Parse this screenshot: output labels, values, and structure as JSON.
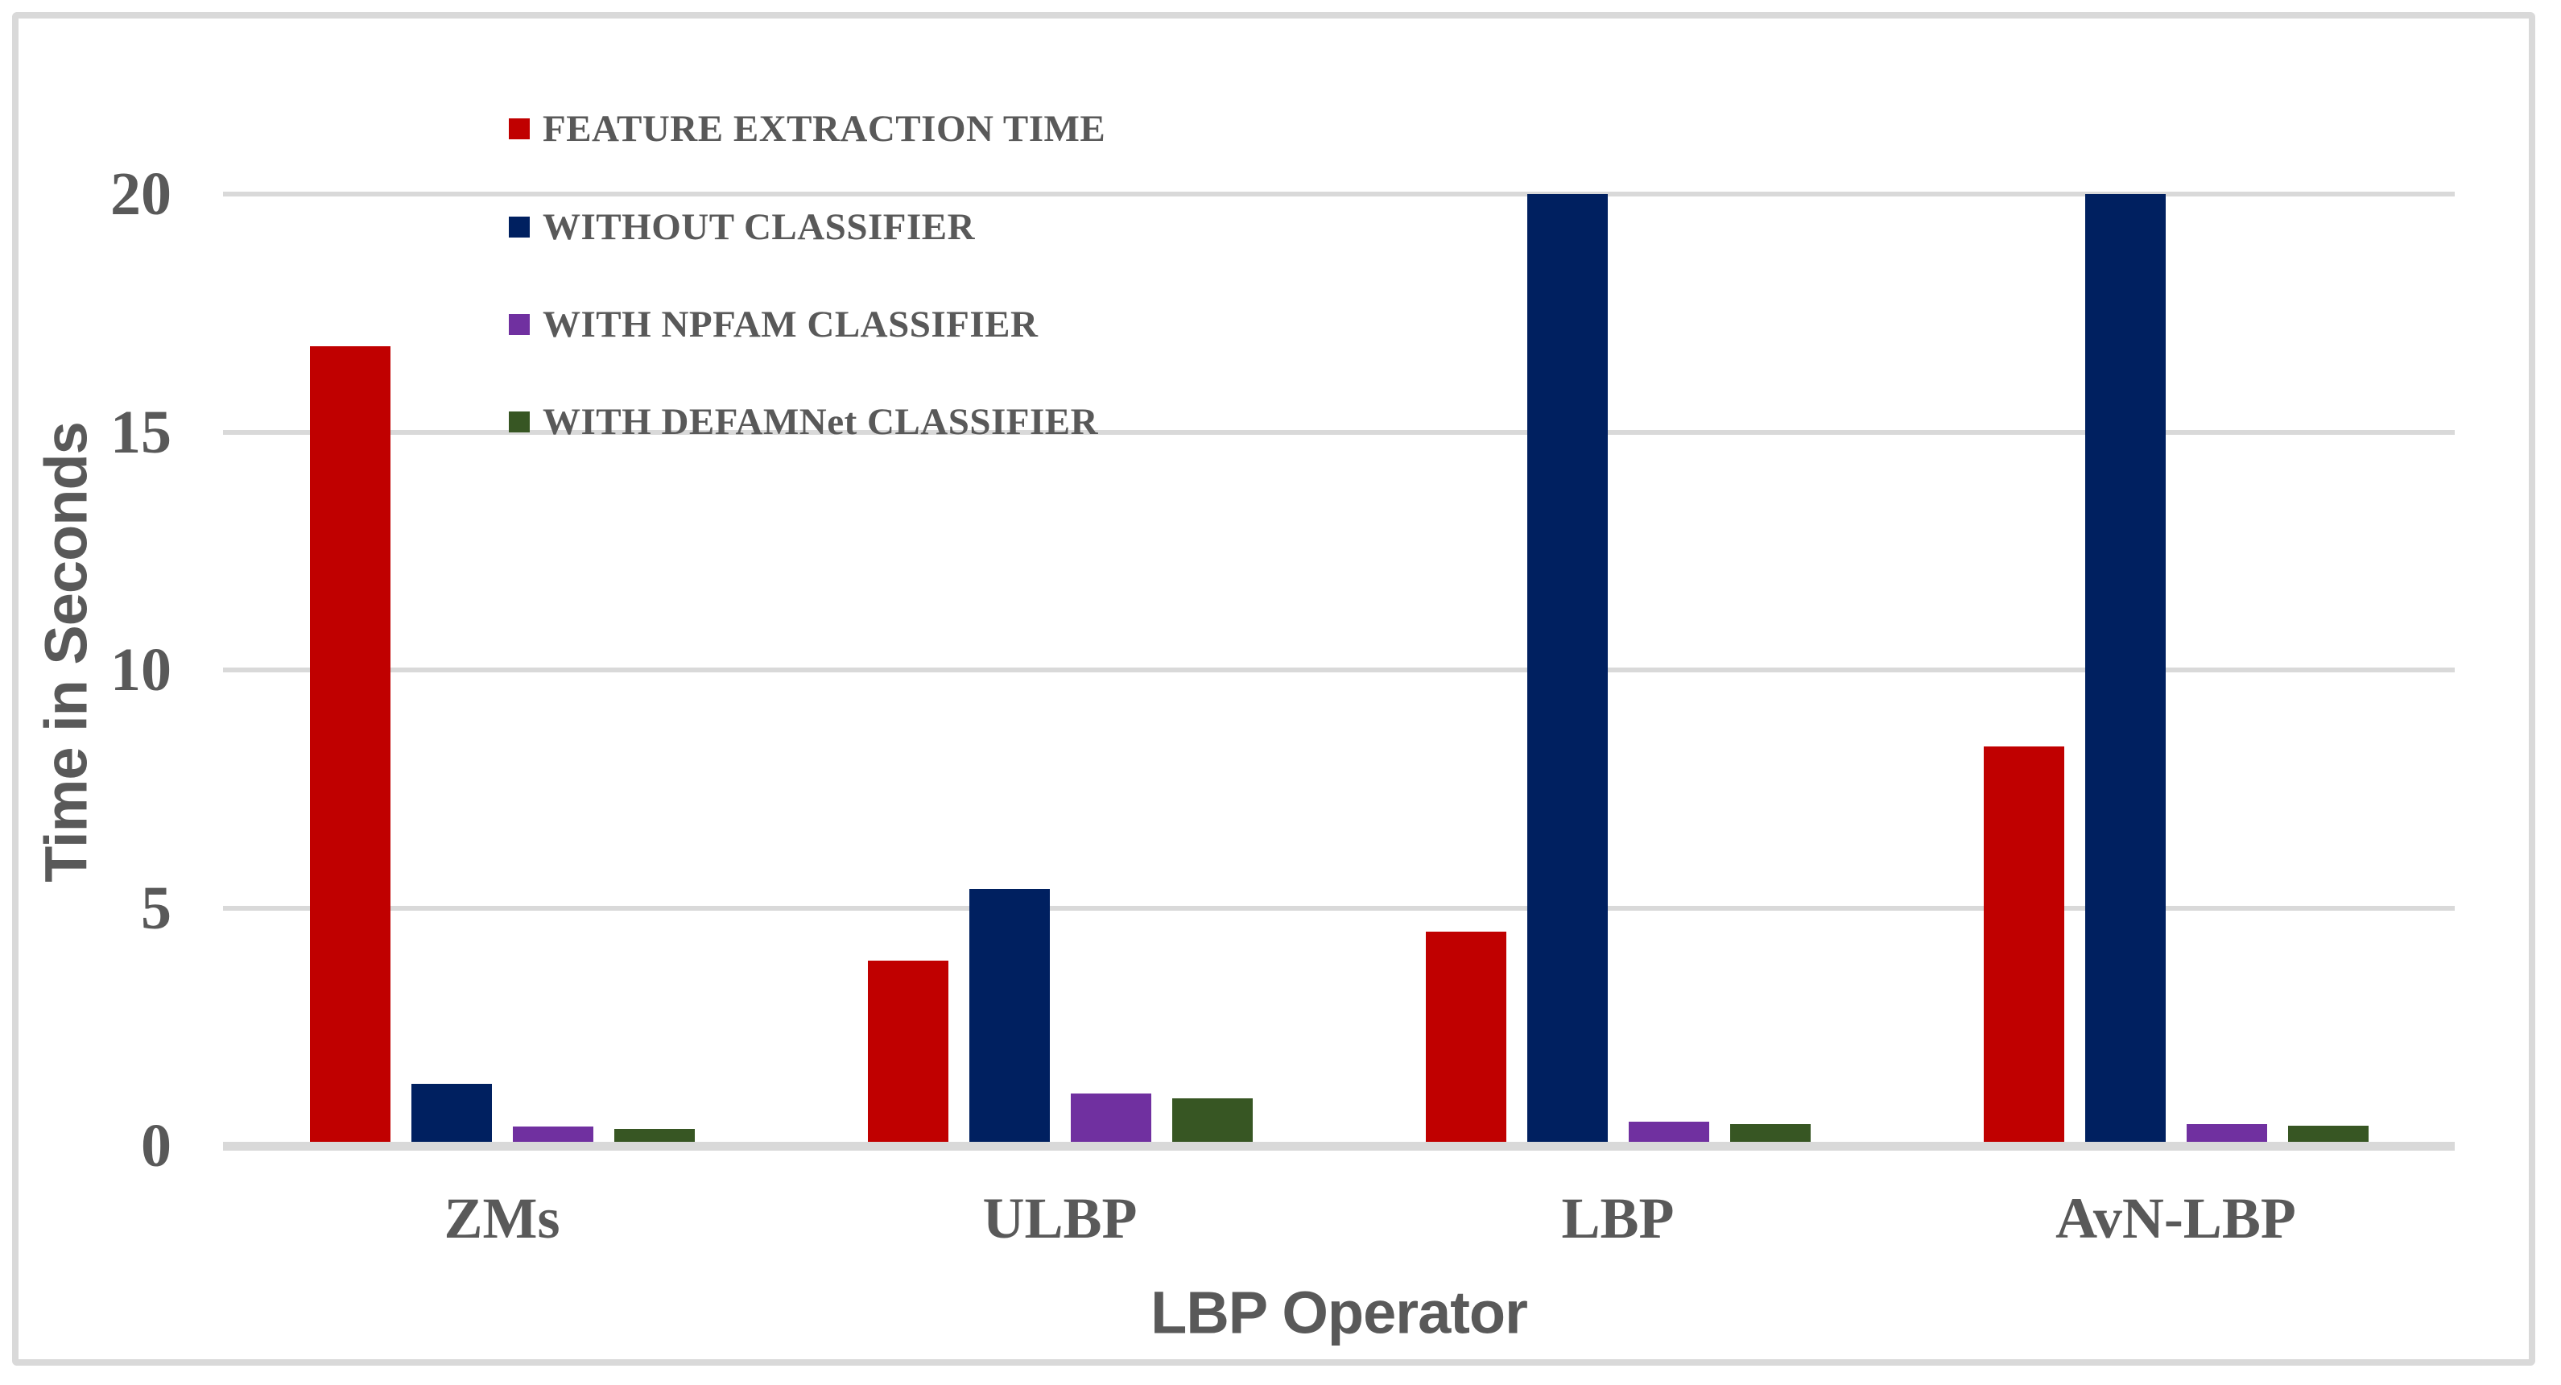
{
  "figure": {
    "background_color": "#ffffff",
    "border_color": "#d9d9d9",
    "gridline_color": "#d9d9d9",
    "text_color": "#595959"
  },
  "chart_data": {
    "type": "bar",
    "title": "",
    "categories": [
      "ZMs",
      "ULBP",
      "LBP",
      "AvN-LBP"
    ],
    "series": [
      {
        "name": "FEATURE EXTRACTION TIME",
        "color": "#c00000",
        "values": [
          16.8,
          3.9,
          4.5,
          8.4
        ]
      },
      {
        "name": "WITHOUT CLASSIFIER",
        "color": "#002060",
        "values": [
          1.3,
          5.4,
          20,
          20
        ]
      },
      {
        "name": "WITH NPFAM CLASSIFIER",
        "color": "#7030a0",
        "values": [
          0.4,
          1.1,
          0.5,
          0.45
        ]
      },
      {
        "name": "WITH DEFAMNet CLASSIFIER",
        "color": "#375623",
        "values": [
          0.35,
          1.0,
          0.46,
          0.42
        ]
      }
    ],
    "xlabel": "LBP Operator",
    "ylabel": "Time in Seconds",
    "ylim": [
      0,
      20
    ],
    "yticks": [
      0,
      5,
      10,
      15,
      20
    ],
    "grid": true,
    "legend_position": "upper-left-inside"
  }
}
